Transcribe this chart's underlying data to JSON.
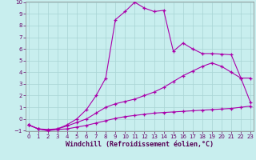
{
  "xlabel": "Windchill (Refroidissement éolien,°C)",
  "bg_color": "#c8eeee",
  "grid_color": "#a8d4d4",
  "line_color": "#aa00aa",
  "xlim": [
    0,
    23
  ],
  "ylim": [
    -1,
    10
  ],
  "xticks": [
    0,
    1,
    2,
    3,
    4,
    5,
    6,
    7,
    8,
    9,
    10,
    11,
    12,
    13,
    14,
    15,
    16,
    17,
    18,
    19,
    20,
    21,
    22,
    23
  ],
  "yticks": [
    -1,
    0,
    1,
    2,
    3,
    4,
    5,
    6,
    7,
    8,
    9,
    10
  ],
  "line1_x": [
    0,
    1,
    2,
    3,
    4,
    5,
    6,
    7,
    8,
    9,
    10,
    11,
    12,
    13,
    14,
    15,
    16,
    17,
    18,
    19,
    20,
    21,
    22,
    23
  ],
  "line1_y": [
    -0.5,
    -0.85,
    -1.0,
    -0.9,
    -0.85,
    -0.7,
    -0.55,
    -0.35,
    -0.15,
    0.05,
    0.2,
    0.3,
    0.4,
    0.5,
    0.55,
    0.6,
    0.65,
    0.7,
    0.75,
    0.8,
    0.85,
    0.9,
    1.0,
    1.1
  ],
  "line2_x": [
    0,
    1,
    2,
    3,
    4,
    5,
    6,
    7,
    8,
    9,
    10,
    11,
    12,
    13,
    14,
    15,
    16,
    17,
    18,
    19,
    20,
    21,
    22,
    23
  ],
  "line2_y": [
    -0.5,
    -0.85,
    -0.9,
    -0.85,
    -0.6,
    -0.3,
    0.0,
    0.5,
    1.0,
    1.3,
    1.5,
    1.7,
    2.0,
    2.3,
    2.7,
    3.2,
    3.7,
    4.1,
    4.5,
    4.8,
    4.5,
    4.0,
    3.5,
    3.5
  ],
  "line3_x": [
    0,
    1,
    2,
    3,
    4,
    5,
    6,
    7,
    8,
    9,
    10,
    11,
    12,
    13,
    14,
    15,
    16,
    17,
    18,
    19,
    20,
    21,
    22,
    23
  ],
  "line3_y": [
    -0.5,
    -0.85,
    -1.0,
    -0.85,
    -0.5,
    0.0,
    0.8,
    2.0,
    3.5,
    8.5,
    9.2,
    10.0,
    9.5,
    9.2,
    9.3,
    5.8,
    6.5,
    6.0,
    5.6,
    5.6,
    5.55,
    5.5,
    3.5,
    1.4
  ]
}
